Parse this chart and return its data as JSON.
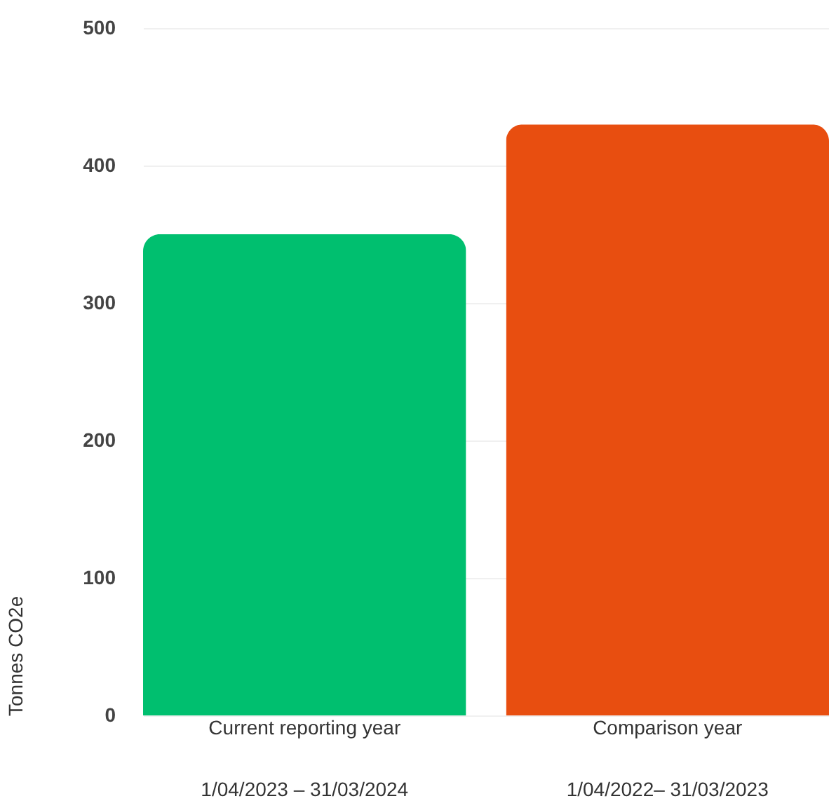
{
  "chart_data": {
    "type": "bar",
    "ylabel": "Tonnes CO2e",
    "categories": [
      "Current reporting year\n1/04/2023 – 31/03/2024",
      "Comparison year\n1/04/2022– 31/03/2023"
    ],
    "values": [
      350,
      430
    ],
    "colors": [
      "#00bf6f",
      "#e84e10"
    ],
    "ylim": [
      0,
      500
    ],
    "yticks": [
      0,
      100,
      200,
      300,
      400,
      500
    ],
    "grid": "y"
  }
}
